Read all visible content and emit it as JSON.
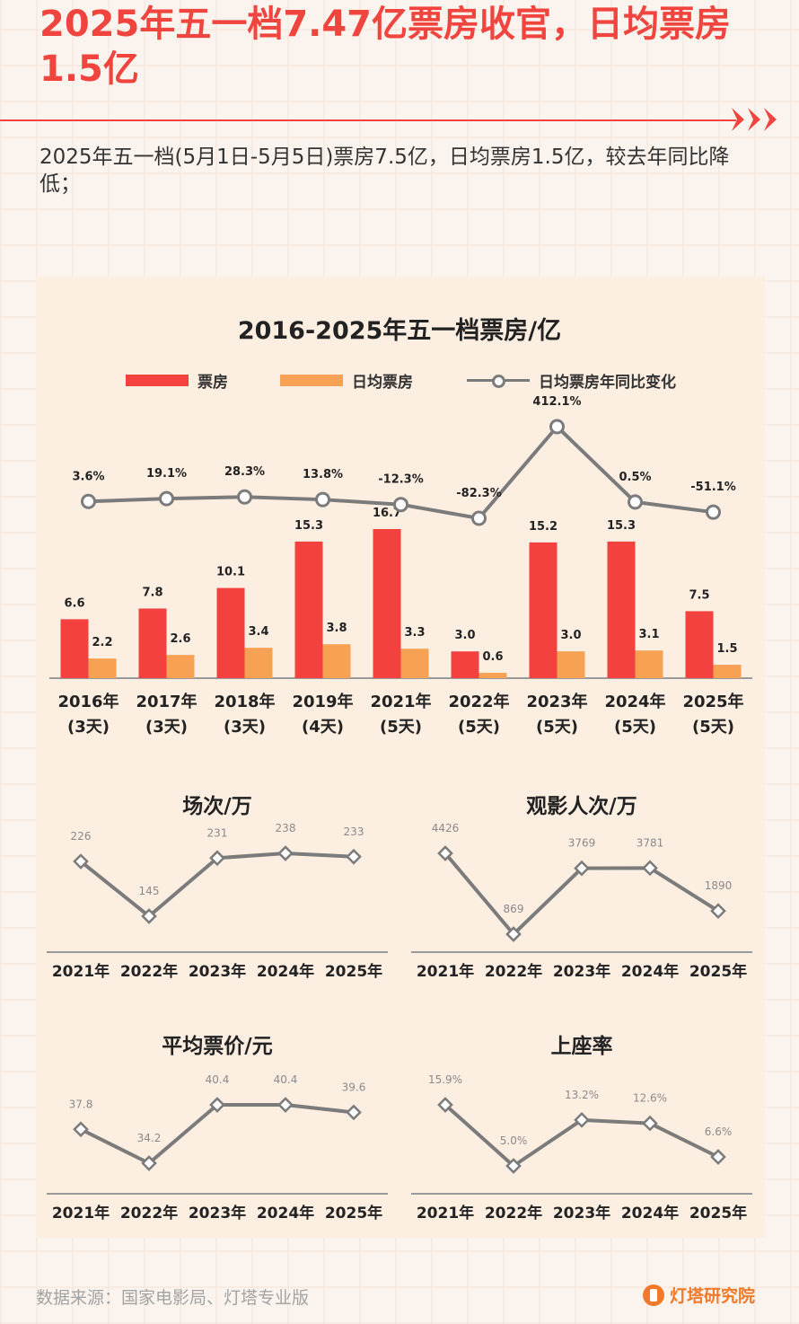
{
  "headline": "2025年五一档7.47亿票房收官，日均票房1.5亿",
  "subtitle": "2025年五一档(5月1日-5月5日)票房7.5亿，日均票房1.5亿，较去年同比降低；",
  "colors": {
    "accent": "#f0443e",
    "bar_main": "#f2413f",
    "bar_daily": "#f7a154",
    "line": "#7b7b7b",
    "panel": "#fdeee2"
  },
  "chart_data": [
    {
      "type": "bar",
      "title": "2016-2025年五一档票房/亿",
      "categories": [
        "2016年",
        "2017年",
        "2018年",
        "2019年",
        "2021年",
        "2022年",
        "2023年",
        "2024年",
        "2025年"
      ],
      "category_days": [
        "(3天)",
        "(3天)",
        "(3天)",
        "(4天)",
        "(5天)",
        "(5天)",
        "(5天)",
        "(5天)",
        "(5天)"
      ],
      "series": [
        {
          "name": "票房",
          "values": [
            6.6,
            7.8,
            10.1,
            15.3,
            16.7,
            3.0,
            15.2,
            15.3,
            7.5
          ],
          "labels": [
            "6.6",
            "7.8",
            "10.1",
            "15.3",
            "16.7",
            "3.0",
            "15.2",
            "15.3",
            "7.5"
          ]
        },
        {
          "name": "日均票房",
          "values": [
            2.2,
            2.6,
            3.4,
            3.8,
            3.3,
            0.6,
            3.0,
            3.1,
            1.5
          ],
          "labels": [
            "2.2",
            "2.6",
            "3.4",
            "3.8",
            "3.3",
            "0.6",
            "3.0",
            "3.1",
            "1.5"
          ]
        },
        {
          "name": "日均票房年同比变化",
          "type": "line",
          "values": [
            3.6,
            19.1,
            28.3,
            13.8,
            -12.3,
            -82.3,
            412.1,
            0.5,
            -51.1
          ],
          "labels": [
            "3.6%",
            "19.1%",
            "28.3%",
            "13.8%",
            "-12.3%",
            "-82.3%",
            "412.1%",
            "0.5%",
            "-51.1%"
          ]
        }
      ],
      "legend_position": "top"
    },
    {
      "type": "line",
      "title": "场次/万",
      "x": [
        "2021年",
        "2022年",
        "2023年",
        "2024年",
        "2025年"
      ],
      "values": [
        226,
        145,
        231,
        238,
        233
      ],
      "labels": [
        "226",
        "145",
        "231",
        "238",
        "233"
      ]
    },
    {
      "type": "line",
      "title": "观影人次/万",
      "x": [
        "2021年",
        "2022年",
        "2023年",
        "2024年",
        "2025年"
      ],
      "values": [
        4426,
        869,
        3769,
        3781,
        1890
      ],
      "labels": [
        "4426",
        "869",
        "3769",
        "3781",
        "1890"
      ]
    },
    {
      "type": "line",
      "title": "平均票价/元",
      "x": [
        "2021年",
        "2022年",
        "2023年",
        "2024年",
        "2025年"
      ],
      "values": [
        37.8,
        34.2,
        40.4,
        40.4,
        39.6
      ],
      "labels": [
        "37.8",
        "34.2",
        "40.4",
        "40.4",
        "39.6"
      ]
    },
    {
      "type": "line",
      "title": "上座率",
      "x": [
        "2021年",
        "2022年",
        "2023年",
        "2024年",
        "2025年"
      ],
      "values": [
        15.9,
        5.0,
        13.2,
        12.6,
        6.6
      ],
      "labels": [
        "15.9%",
        "5.0%",
        "13.2%",
        "12.6%",
        "6.6%"
      ]
    }
  ],
  "footer": {
    "source": "数据来源：国家电影局、灯塔专业版",
    "brand": "灯塔研究院"
  }
}
